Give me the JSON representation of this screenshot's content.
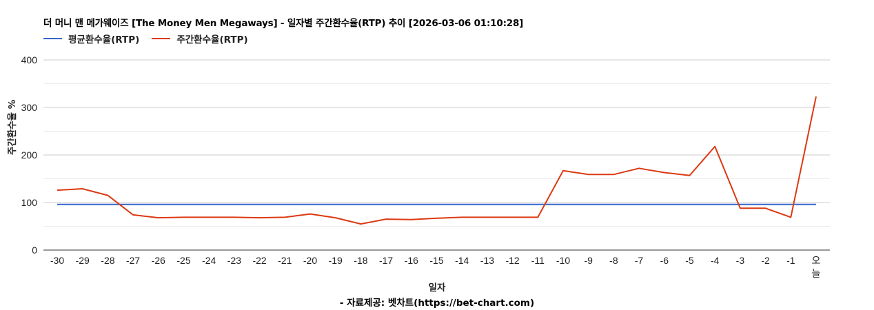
{
  "title": "더 머니 맨 메가웨이즈 [The Money Men Megaways] - 일자별 주간환수율(RTP) 추이 [2026-03-06 01:10:28]",
  "legend": [
    {
      "label": "평균환수율(RTP)",
      "color": "#3366cc"
    },
    {
      "label": "주간환수율(RTP)",
      "color": "#dc3912"
    }
  ],
  "axis": {
    "y_title": "주간환수율 %",
    "x_title": "일자",
    "y_ticks": [
      "0",
      "100",
      "200",
      "300",
      "400"
    ]
  },
  "source": "- 자료제공: 벳차트(https://bet-chart.com)",
  "chart_data": {
    "type": "line",
    "title": "더 머니 맨 메가웨이즈 [The Money Men Megaways] - 일자별 주간환수율(RTP) 추이 [2026-03-06 01:10:28]",
    "xlabel": "일자",
    "ylabel": "주간환수율 %",
    "ylim": [
      0,
      400
    ],
    "y_ticks": [
      0,
      100,
      200,
      300,
      400
    ],
    "grid": true,
    "legend_position": "top",
    "categories": [
      "-30",
      "-29",
      "-28",
      "-27",
      "-26",
      "-25",
      "-24",
      "-23",
      "-22",
      "-21",
      "-20",
      "-19",
      "-18",
      "-17",
      "-16",
      "-15",
      "-14",
      "-13",
      "-12",
      "-11",
      "-10",
      "-9",
      "-8",
      "-7",
      "-6",
      "-5",
      "-4",
      "-3",
      "-2",
      "-1",
      "오늘"
    ],
    "series": [
      {
        "name": "평균환수율(RTP)",
        "color": "#3366cc",
        "values": [
          96,
          96,
          96,
          96,
          96,
          96,
          96,
          96,
          96,
          96,
          96,
          96,
          96,
          96,
          96,
          96,
          96,
          96,
          96,
          96,
          96,
          96,
          96,
          96,
          96,
          96,
          96,
          96,
          96,
          96,
          96
        ]
      },
      {
        "name": "주간환수율(RTP)",
        "color": "#dc3912",
        "values": [
          126,
          129,
          115,
          74,
          68,
          69,
          69,
          69,
          68,
          69,
          76,
          68,
          55,
          65,
          64,
          67,
          69,
          69,
          69,
          69,
          167,
          159,
          159,
          172,
          163,
          157,
          218,
          88,
          88,
          69,
          323
        ]
      }
    ]
  }
}
